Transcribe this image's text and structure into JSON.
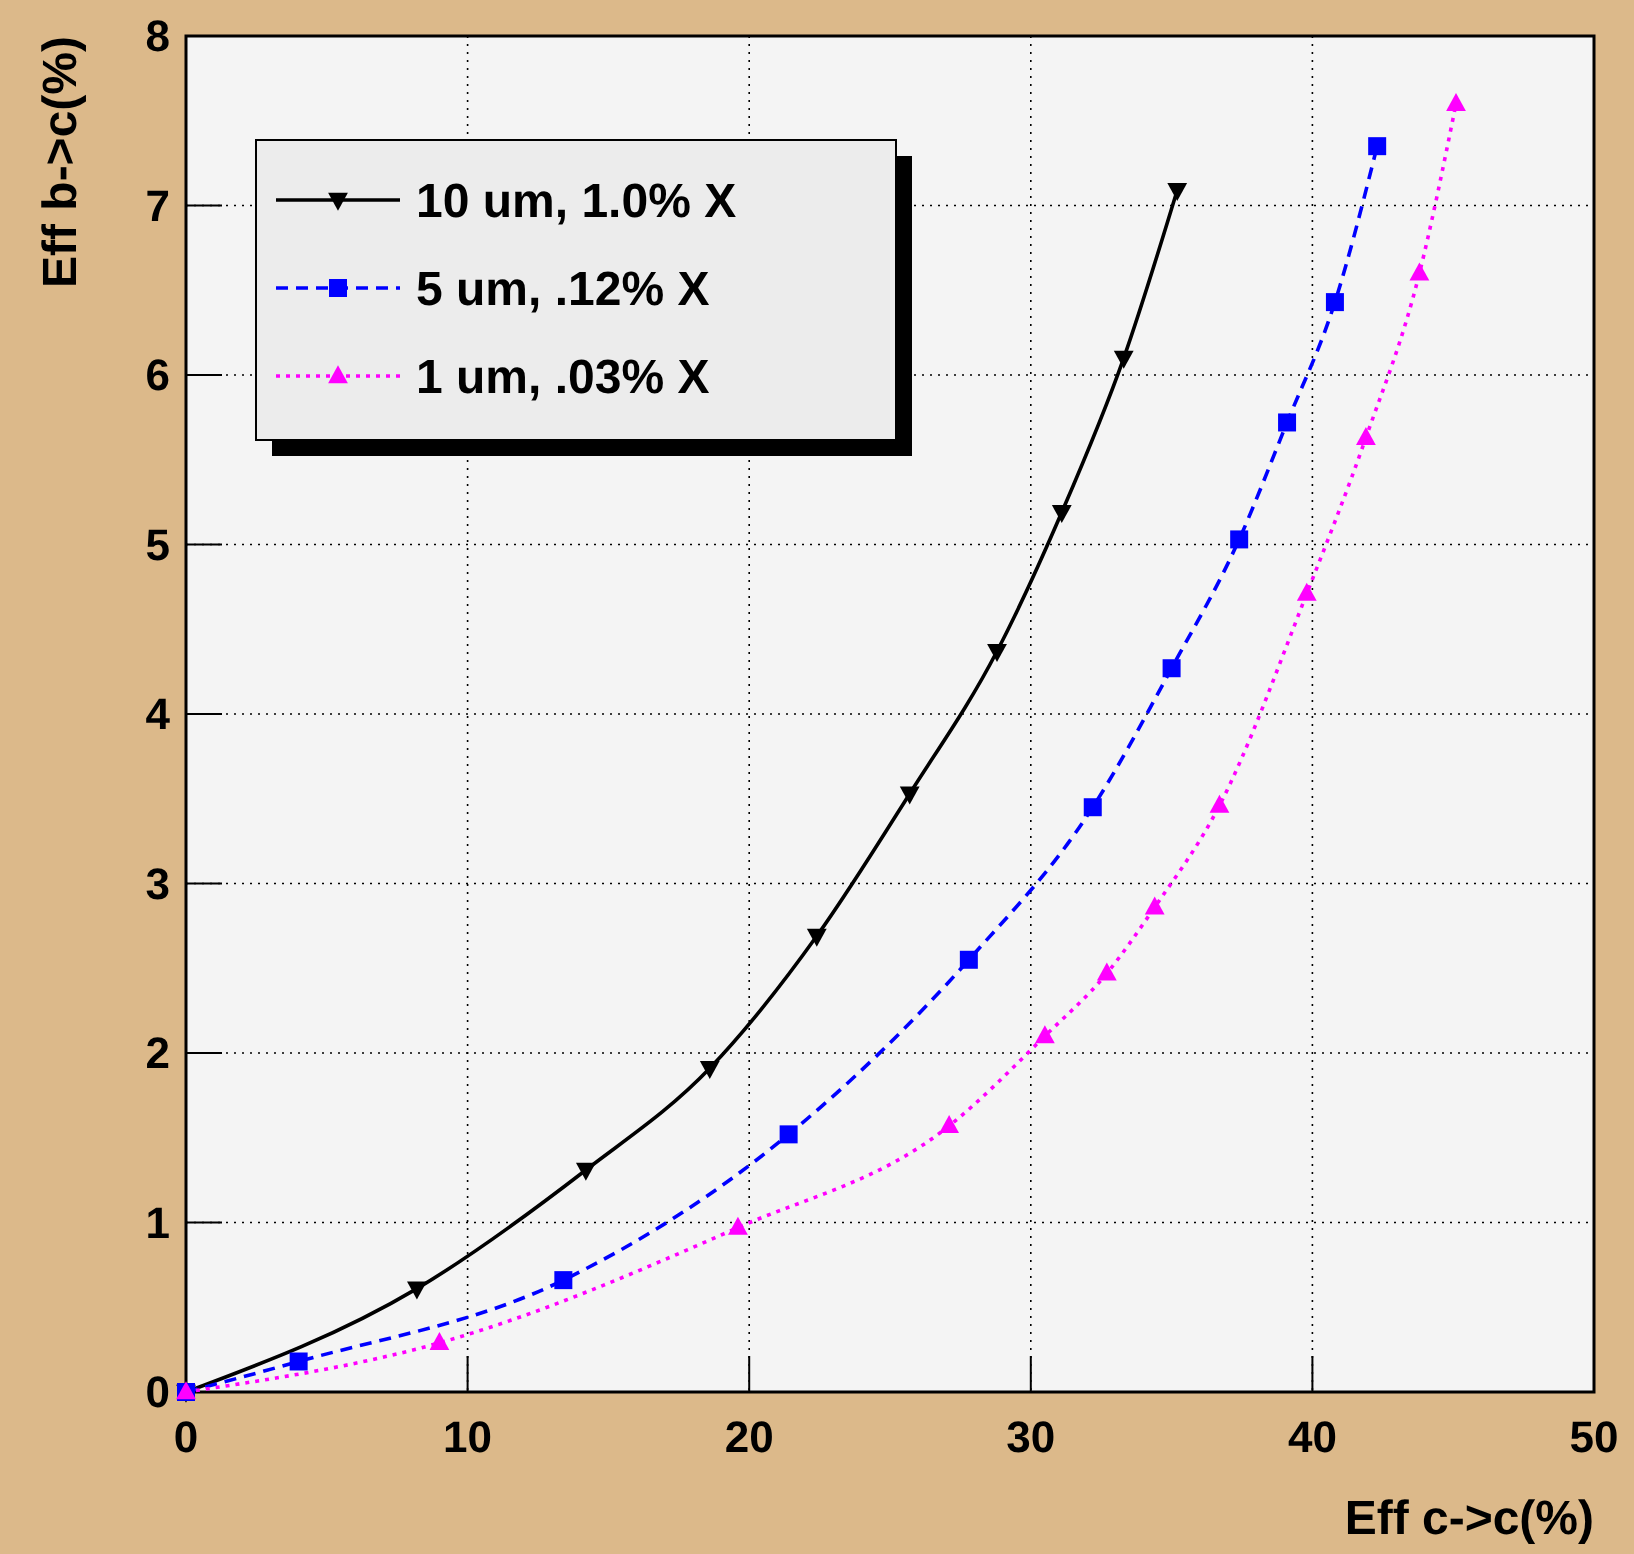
{
  "chart_data": {
    "type": "line",
    "xlabel": "Eff c->c(%)",
    "ylabel": "Eff b->c(%)",
    "xlim": [
      0,
      50
    ],
    "ylim": [
      0,
      8
    ],
    "xticks": [
      0,
      10,
      20,
      30,
      40,
      50
    ],
    "yticks": [
      0,
      1,
      2,
      3,
      4,
      5,
      6,
      7,
      8
    ],
    "grid": true,
    "legend": "top left",
    "series": [
      {
        "name": "10 um, 1.0% X",
        "color": "#000000",
        "marker": "triangle_down",
        "line_style": "solid",
        "x": [
          0,
          8.2,
          14.2,
          18.6,
          22.4,
          25.7,
          28.8,
          31.1,
          33.3,
          35.2
        ],
        "values": [
          0,
          0.61,
          1.31,
          1.91,
          2.69,
          3.53,
          4.37,
          5.19,
          6.1,
          7.09
        ]
      },
      {
        "name": "5 um, .12% X",
        "color": "#0000ff",
        "marker": "square",
        "line_style": "dashed",
        "x": [
          0,
          4,
          13.4,
          21.4,
          27.8,
          32.2,
          35,
          37.4,
          39.1,
          40.8,
          42.3
        ],
        "values": [
          0,
          0.18,
          0.66,
          1.52,
          2.55,
          3.45,
          4.27,
          5.03,
          5.72,
          6.43,
          7.35
        ]
      },
      {
        "name": "1 um, .03% X",
        "color": "#ff00ff",
        "marker": "triangle",
        "line_style": "dotted",
        "x": [
          0,
          9,
          19.6,
          27.1,
          30.5,
          32.7,
          34.4,
          36.7,
          39.8,
          41.9,
          43.8,
          45.1
        ],
        "values": [
          0,
          0.29,
          0.97,
          1.57,
          2.1,
          2.47,
          2.86,
          3.46,
          4.71,
          5.63,
          6.6,
          7.6
        ]
      }
    ]
  }
}
